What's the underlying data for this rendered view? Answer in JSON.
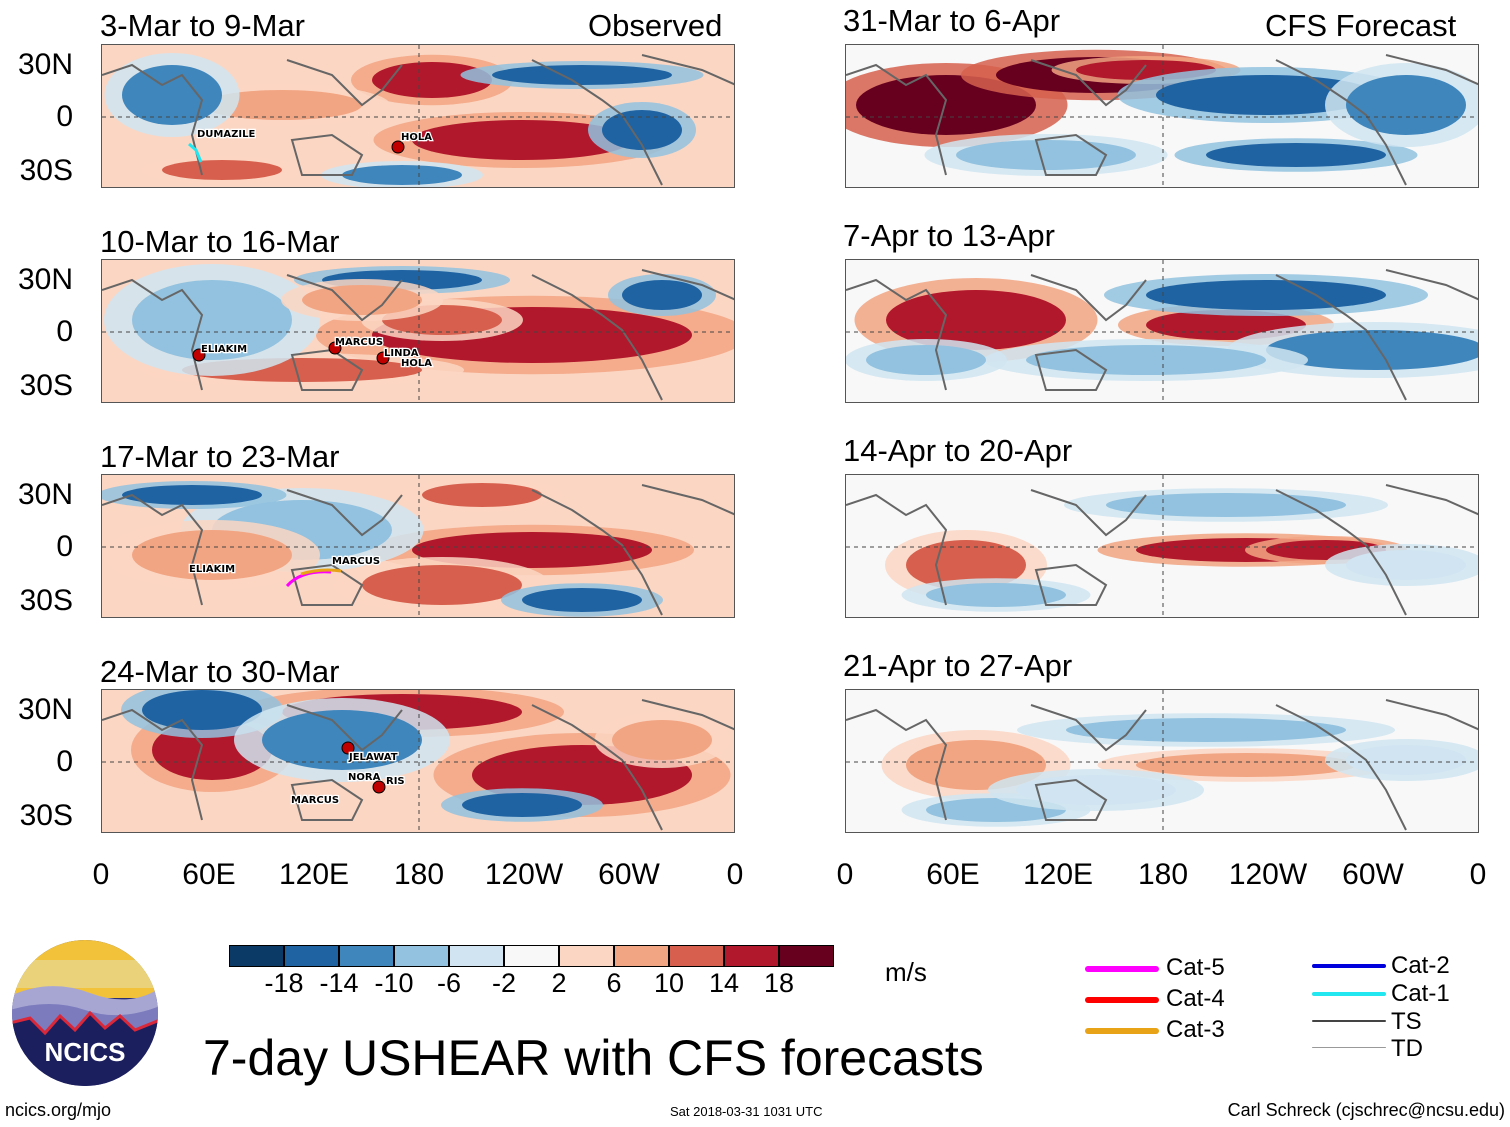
{
  "header": {
    "observed_label": "Observed",
    "forecast_label": "CFS Forecast"
  },
  "colors": {
    "scale": [
      "#0b3a66",
      "#1f63a3",
      "#3f86bd",
      "#92c2df",
      "#d0e5f1",
      "#f8f8f8",
      "#fbd6c3",
      "#f2a582",
      "#d6604d",
      "#b2182b",
      "#67001f"
    ]
  },
  "observed_panels": [
    {
      "title": "3-Mar to 9-Mar",
      "storms": [
        "DUMAZILE",
        "HOLA"
      ]
    },
    {
      "title": "10-Mar to 16-Mar",
      "storms": [
        "ELIAKIM",
        "MARCUS",
        "LINDA",
        "HOLA"
      ]
    },
    {
      "title": "17-Mar to 23-Mar",
      "storms": [
        "ELIAKIM",
        "MARCUS"
      ]
    },
    {
      "title": "24-Mar to 30-Mar",
      "storms": [
        "JELAWAT",
        "NORA",
        "RIS",
        "MARCUS"
      ]
    }
  ],
  "forecast_panels": [
    {
      "title": "31-Mar to 6-Apr"
    },
    {
      "title": "7-Apr to 13-Apr"
    },
    {
      "title": "14-Apr to 20-Apr"
    },
    {
      "title": "21-Apr to 27-Apr"
    }
  ],
  "lat_labels": [
    "30N",
    "0",
    "30S"
  ],
  "lon_labels": [
    "0",
    "60E",
    "120E",
    "180",
    "120W",
    "60W",
    "0"
  ],
  "colorbar": {
    "ticks": [
      "-18",
      "-14",
      "-10",
      "-6",
      "-2",
      "2",
      "6",
      "10",
      "14",
      "18"
    ],
    "units": "m/s"
  },
  "legend": [
    {
      "label": "Cat-5",
      "color": "#ff00ff"
    },
    {
      "label": "Cat-4",
      "color": "#ff0000"
    },
    {
      "label": "Cat-3",
      "color": "#e8a317"
    },
    {
      "label": "Cat-2",
      "color": "#0000dd"
    },
    {
      "label": "Cat-1",
      "color": "#22e6f0"
    },
    {
      "label": "TS",
      "color": "#444444"
    },
    {
      "label": "TD",
      "color": "#999999"
    }
  ],
  "logo": {
    "text": "NCICS"
  },
  "main_title": "7-day USHEAR with CFS forecasts",
  "footer": {
    "left": "ncics.org/mjo",
    "center": "Sat 2018-03-31 1031 UTC",
    "right": "Carl Schreck (cjschrec@ncsu.edu)"
  }
}
